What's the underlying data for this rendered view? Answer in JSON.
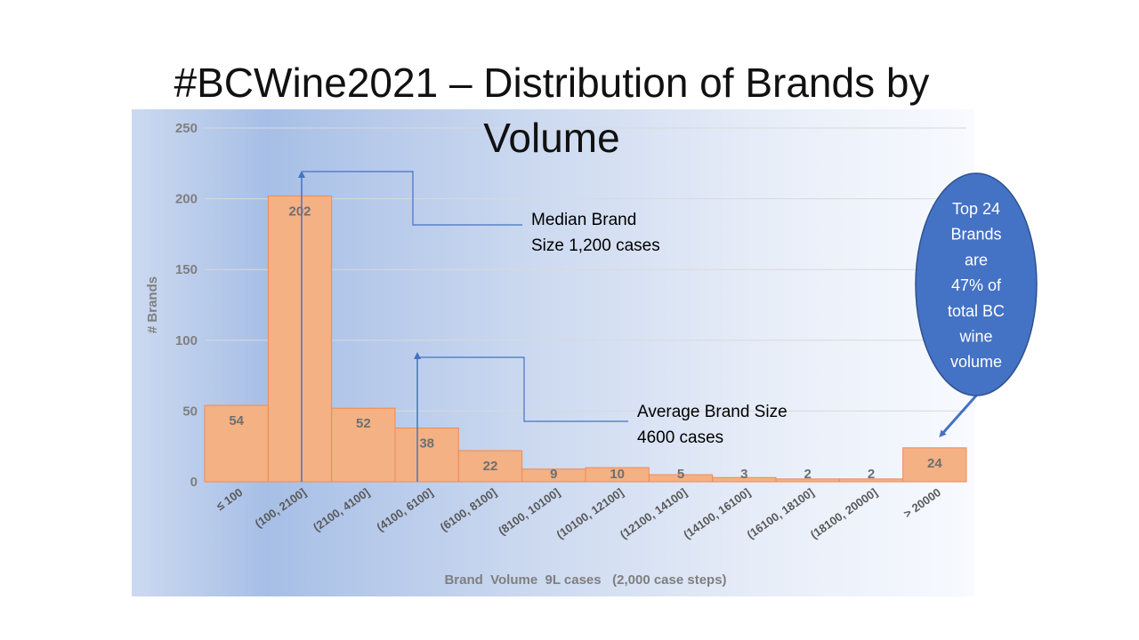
{
  "slide": {
    "title": "#BCWine2021 – Distribution of Brands by Volume"
  },
  "chart_data": {
    "type": "bar",
    "categories": [
      "≤ 100",
      "(100, 2100]",
      "(2100, 4100]",
      "(4100, 6100]",
      "(6100, 8100]",
      "(8100, 10100]",
      "(10100, 12100]",
      "(12100, 14100]",
      "(14100, 16100]",
      "(16100, 18100]",
      "(18100, 20000]",
      "> 20000"
    ],
    "values": [
      54,
      202,
      52,
      38,
      22,
      9,
      10,
      5,
      3,
      2,
      2,
      24
    ],
    "xlabel": "Brand  Volume  9L cases   (2,000 case steps)",
    "ylabel": "# Brands",
    "ylim": [
      0,
      250
    ],
    "yticks": [
      0,
      50,
      100,
      150,
      200,
      250
    ],
    "grid": true,
    "bar_color": "#f4b183",
    "annotations": [
      {
        "id": "median",
        "lines": [
          "Median Brand",
          "Size 1,200 cases"
        ],
        "x_value": 1200
      },
      {
        "id": "average",
        "lines": [
          "Average Brand Size",
          "4600 cases"
        ],
        "x_value": 4600
      }
    ],
    "callout": {
      "lines": [
        "Top 24",
        "Brands",
        "are",
        "47% of",
        "total BC",
        "wine",
        "volume"
      ],
      "color": "#4472c4"
    },
    "accent_line_color": "#4472c4"
  }
}
